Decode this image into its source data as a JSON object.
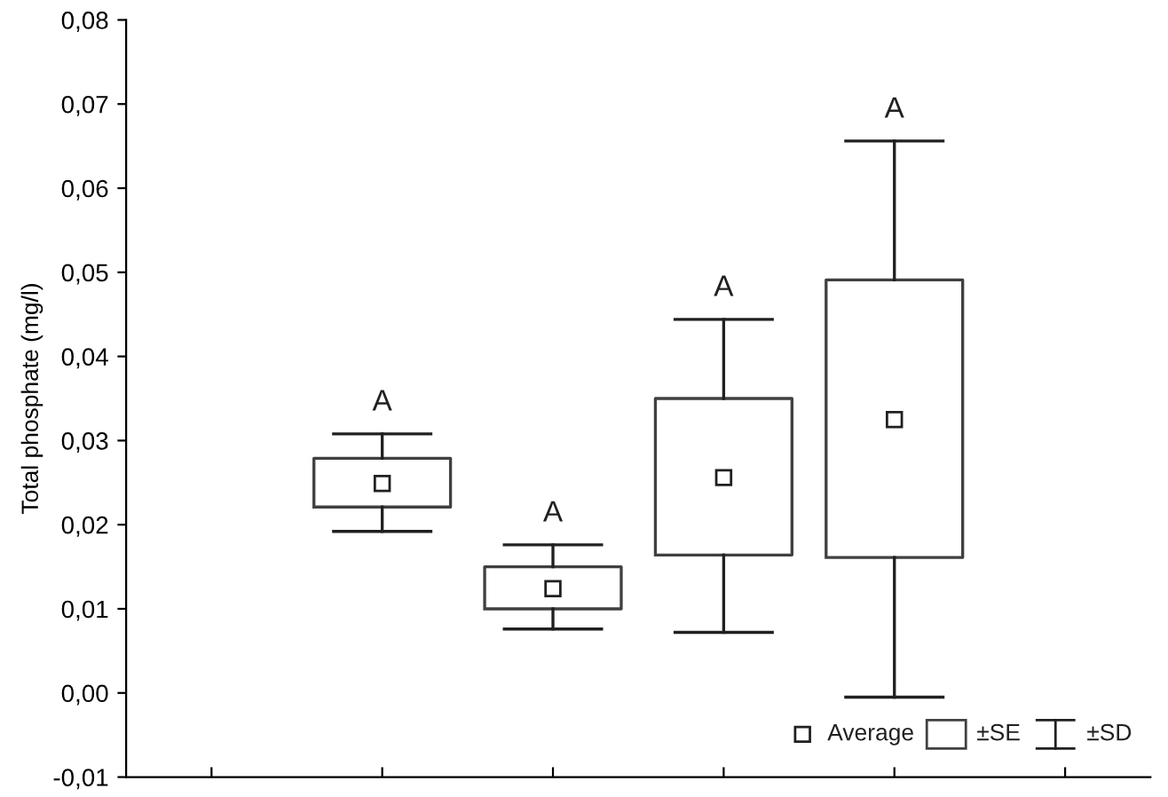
{
  "chart_data": {
    "type": "box",
    "ylabel": "Total phosphate (mg/l)",
    "categories": [
      null,
      null,
      null,
      null,
      null,
      null
    ],
    "boxes": [
      null,
      {
        "low": 0.0192,
        "q1": 0.0221,
        "median": 0.0249,
        "q3": 0.0279,
        "high": 0.0308
      },
      {
        "low": 0.0076,
        "q1": 0.01,
        "median": 0.0124,
        "q3": 0.015,
        "high": 0.0176
      },
      {
        "low": 0.0072,
        "q1": 0.0164,
        "median": 0.0256,
        "q3": 0.035,
        "high": 0.0444
      },
      {
        "low": -0.0005,
        "q1": 0.0161,
        "median": 0.0325,
        "q3": 0.0491,
        "high": 0.0656
      },
      null
    ],
    "value_labels": [
      null,
      "A",
      "A",
      "A",
      "A",
      null
    ],
    "annotations": [
      "Average",
      "±SE",
      "±SD"
    ],
    "ylim": [
      -0.01,
      0.08
    ],
    "yticks": [
      {
        "value": -0.01,
        "label": "-0,01"
      },
      {
        "value": 0,
        "label": "0,00"
      },
      {
        "value": 0.01,
        "label": "0,01"
      },
      {
        "value": 0.02,
        "label": "0,02"
      },
      {
        "value": 0.03,
        "label": "0,03"
      },
      {
        "value": 0.04,
        "label": "0,04"
      },
      {
        "value": 0.05,
        "label": "0,05"
      },
      {
        "value": 0.06,
        "label": "0,06"
      },
      {
        "value": 0.07,
        "label": "0,07"
      },
      {
        "value": 0.08,
        "label": "0,08"
      }
    ],
    "grid": false,
    "marker": "square"
  }
}
